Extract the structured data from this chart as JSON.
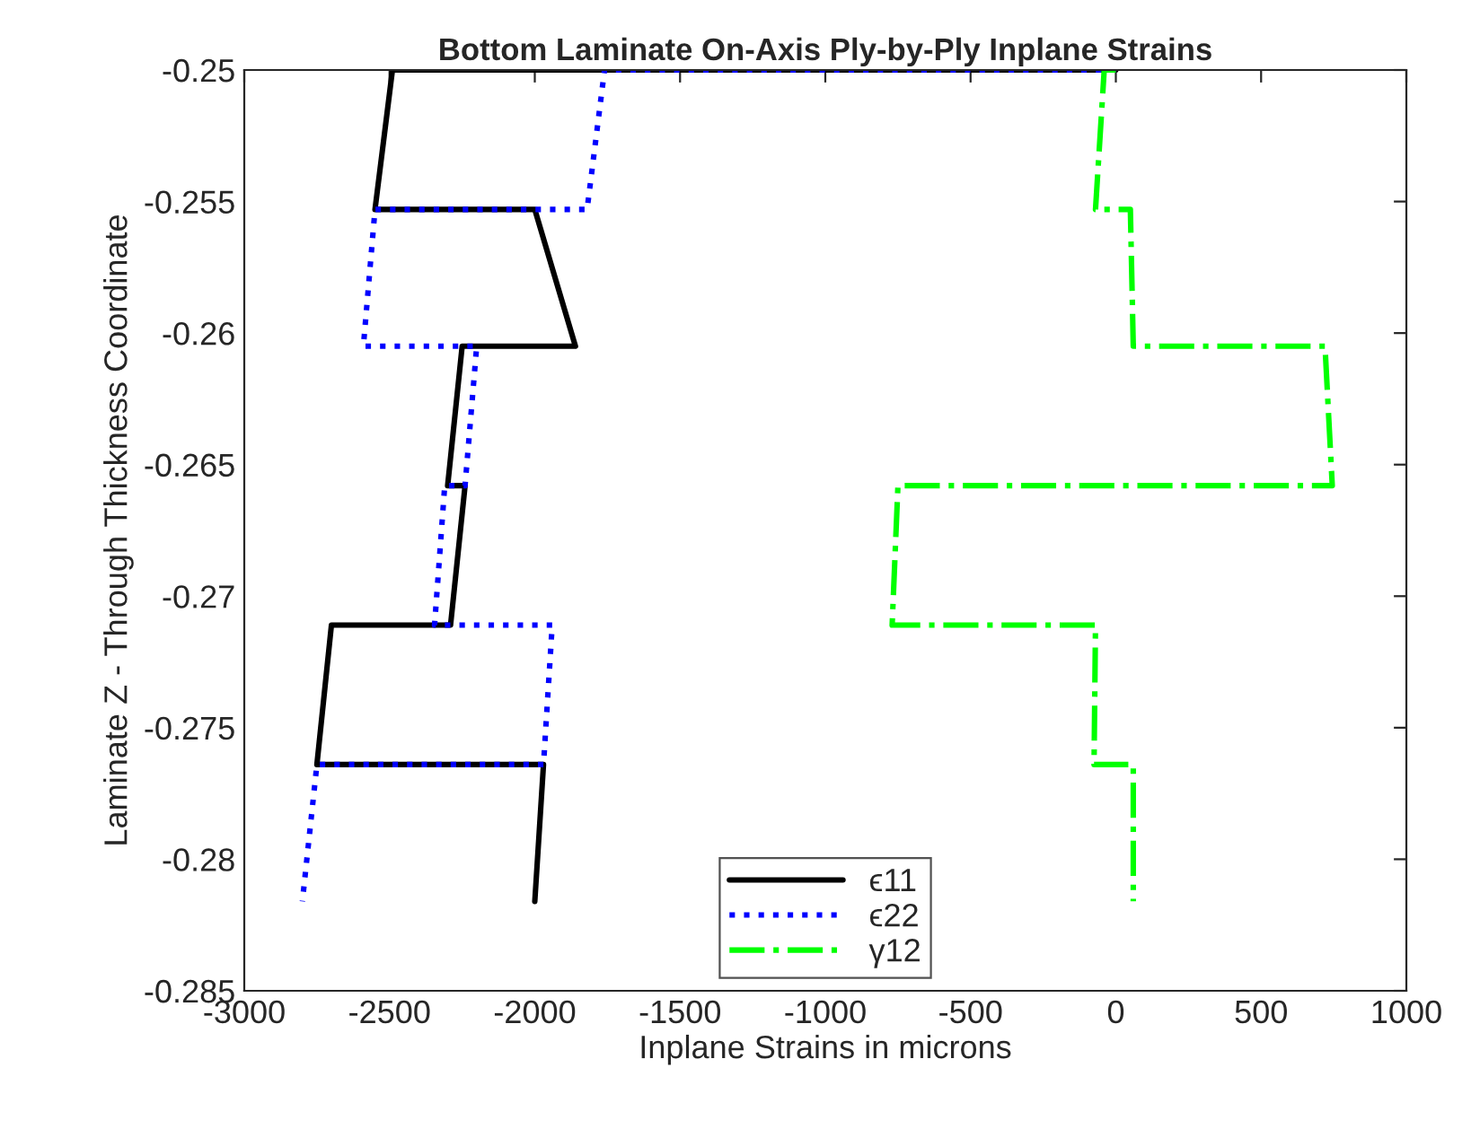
{
  "chart_data": {
    "type": "line",
    "title": "Bottom Laminate On-Axis Ply-by-Ply Inplane Strains",
    "xlabel": "Inplane Strains in microns",
    "ylabel": "Laminate Z - Through Thickness Coordinate",
    "series": [
      {
        "name": "ϵ11",
        "color": "#000000",
        "line_style": "solid",
        "x": [
          0,
          -2490,
          -2550,
          -2000,
          -1860,
          -2250,
          -2300,
          -2240,
          -2290,
          -2700,
          -2750,
          -1970,
          -2000
        ],
        "values": [
          -0.25,
          -0.25,
          -0.2553,
          -0.2553,
          -0.2605,
          -0.2605,
          -0.2658,
          -0.2658,
          -0.2711,
          -0.2711,
          -0.2764,
          -0.2764,
          -0.2816
        ]
      },
      {
        "name": "ϵ22",
        "color": "#0000ff",
        "line_style": "dotted",
        "x": [
          0,
          -1760,
          -1820,
          -2550,
          -2590,
          -2200,
          -2240,
          -2310,
          -2345,
          -1940,
          -1970,
          -2750,
          -2800
        ],
        "values": [
          -0.25,
          -0.25,
          -0.2553,
          -0.2553,
          -0.2605,
          -0.2605,
          -0.2658,
          -0.2658,
          -0.2711,
          -0.2711,
          -0.2764,
          -0.2764,
          -0.2816
        ]
      },
      {
        "name": "γ12",
        "color": "#00ff00",
        "line_style": "dashdot",
        "x": [
          0,
          -40,
          -70,
          50,
          60,
          720,
          745,
          -750,
          -770,
          -70,
          -75,
          60,
          60
        ],
        "values": [
          -0.25,
          -0.25,
          -0.2553,
          -0.2553,
          -0.2605,
          -0.2605,
          -0.2658,
          -0.2658,
          -0.2711,
          -0.2711,
          -0.2764,
          -0.2764,
          -0.2816
        ]
      }
    ],
    "xlim": [
      -3000,
      1000
    ],
    "xticks": [
      -3000,
      -2500,
      -2000,
      -1500,
      -1000,
      -500,
      0,
      500,
      1000
    ],
    "ylim": [
      -0.285,
      -0.25
    ],
    "yticks": [
      -0.285,
      -0.28,
      -0.275,
      -0.27,
      -0.265,
      -0.26,
      -0.255,
      -0.25
    ],
    "grid": false,
    "legend": "bottom",
    "marker": "none"
  }
}
